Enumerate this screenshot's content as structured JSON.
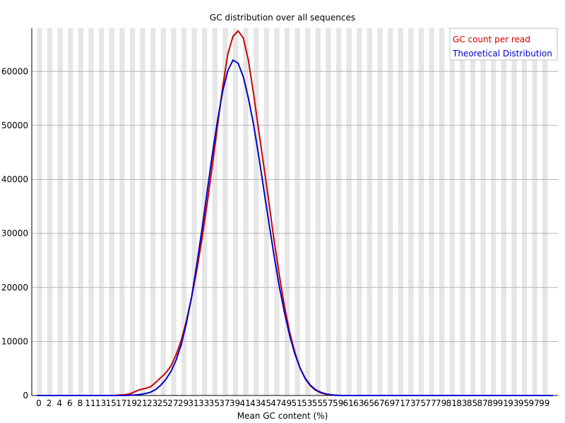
{
  "chart_data": {
    "type": "line",
    "title": "GC distribution over all sequences",
    "xlabel": "Mean GC content (%)",
    "ylabel": "",
    "xlim": [
      0,
      100
    ],
    "ylim": [
      0,
      68000
    ],
    "x_ticks": [
      "0",
      "2",
      "4",
      "6",
      "8",
      "11",
      "13",
      "15",
      "17",
      "19",
      "21",
      "23",
      "25",
      "27",
      "29",
      "31",
      "33",
      "35",
      "37",
      "39",
      "41",
      "43",
      "45",
      "47",
      "49",
      "51",
      "53",
      "55",
      "57",
      "59",
      "61",
      "63",
      "65",
      "67",
      "69",
      "71",
      "73",
      "75",
      "77",
      "79",
      "81",
      "83",
      "85",
      "87",
      "89",
      "91",
      "93",
      "95",
      "97",
      "99"
    ],
    "y_ticks": [
      0,
      10000,
      20000,
      30000,
      40000,
      50000,
      60000
    ],
    "grid": true,
    "legend_position": "top-right",
    "series": [
      {
        "name": "GC count per read",
        "color": "#cc0000",
        "x": [
          0,
          1,
          2,
          3,
          4,
          5,
          6,
          7,
          8,
          9,
          10,
          11,
          12,
          13,
          14,
          15,
          16,
          17,
          18,
          19,
          20,
          21,
          22,
          23,
          24,
          25,
          26,
          27,
          28,
          29,
          30,
          31,
          32,
          33,
          34,
          35,
          36,
          37,
          38,
          39,
          40,
          41,
          42,
          43,
          44,
          45,
          46,
          47,
          48,
          49,
          50,
          51,
          52,
          53,
          54,
          55,
          56,
          57,
          58,
          59,
          60,
          61,
          62,
          63,
          64,
          65,
          66,
          67,
          68,
          69,
          70,
          71,
          72,
          73,
          74,
          75,
          76,
          77,
          78,
          79,
          80,
          81,
          82,
          83,
          84,
          85,
          86,
          87,
          88,
          89,
          90,
          91,
          92,
          93,
          94,
          95,
          96,
          97,
          98,
          99,
          100
        ],
        "values": [
          0,
          0,
          0,
          0,
          0,
          0,
          0,
          0,
          0,
          0,
          0,
          0,
          0,
          0,
          0,
          0,
          100,
          150,
          300,
          700,
          1100,
          1300,
          1600,
          2400,
          3300,
          4200,
          5500,
          7600,
          10300,
          13900,
          18300,
          23200,
          29000,
          35500,
          42500,
          49800,
          57000,
          63200,
          66500,
          67500,
          66200,
          62000,
          55800,
          49000,
          42300,
          35500,
          28500,
          22200,
          16400,
          11700,
          8000,
          5100,
          3100,
          1800,
          1000,
          500,
          250,
          100,
          30,
          0,
          0,
          0,
          0,
          0,
          0,
          0,
          0,
          0,
          0,
          0,
          0,
          0,
          0,
          0,
          0,
          0,
          0,
          0,
          0,
          0,
          0,
          0,
          0,
          0,
          0,
          0,
          0,
          0,
          0,
          0,
          0,
          0,
          0,
          0,
          0,
          0,
          0,
          0,
          0,
          0,
          0
        ]
      },
      {
        "name": "Theoretical Distribution",
        "color": "#0000cc",
        "x": [
          0,
          1,
          2,
          3,
          4,
          5,
          6,
          7,
          8,
          9,
          10,
          11,
          12,
          13,
          14,
          15,
          16,
          17,
          18,
          19,
          20,
          21,
          22,
          23,
          24,
          25,
          26,
          27,
          28,
          29,
          30,
          31,
          32,
          33,
          34,
          35,
          36,
          37,
          38,
          39,
          40,
          41,
          42,
          43,
          44,
          45,
          46,
          47,
          48,
          49,
          50,
          51,
          52,
          53,
          54,
          55,
          56,
          57,
          58,
          59,
          60,
          61,
          62,
          63,
          64,
          65,
          66,
          67,
          68,
          69,
          70,
          71,
          72,
          73,
          74,
          75,
          76,
          77,
          78,
          79,
          80,
          81,
          82,
          83,
          84,
          85,
          86,
          87,
          88,
          89,
          90,
          91,
          92,
          93,
          94,
          95,
          96,
          97,
          98,
          99,
          100
        ],
        "values": [
          0,
          0,
          0,
          0,
          0,
          0,
          0,
          0,
          0,
          0,
          0,
          0,
          0,
          0,
          0,
          0,
          0,
          0,
          50,
          100,
          200,
          350,
          600,
          1100,
          1900,
          3000,
          4500,
          6600,
          9500,
          13500,
          18300,
          24300,
          30800,
          37700,
          44600,
          50800,
          56300,
          60100,
          62100,
          61500,
          59000,
          55000,
          50100,
          44300,
          38000,
          31800,
          25700,
          20100,
          15300,
          11100,
          7700,
          5100,
          3200,
          1900,
          1100,
          600,
          300,
          150,
          50,
          0,
          0,
          0,
          0,
          0,
          0,
          0,
          0,
          0,
          0,
          0,
          0,
          0,
          0,
          0,
          0,
          0,
          0,
          0,
          0,
          0,
          0,
          0,
          0,
          0,
          0,
          0,
          0,
          0,
          0,
          0,
          0,
          0,
          0,
          0,
          0,
          0,
          0,
          0,
          0,
          0,
          0
        ]
      }
    ]
  }
}
